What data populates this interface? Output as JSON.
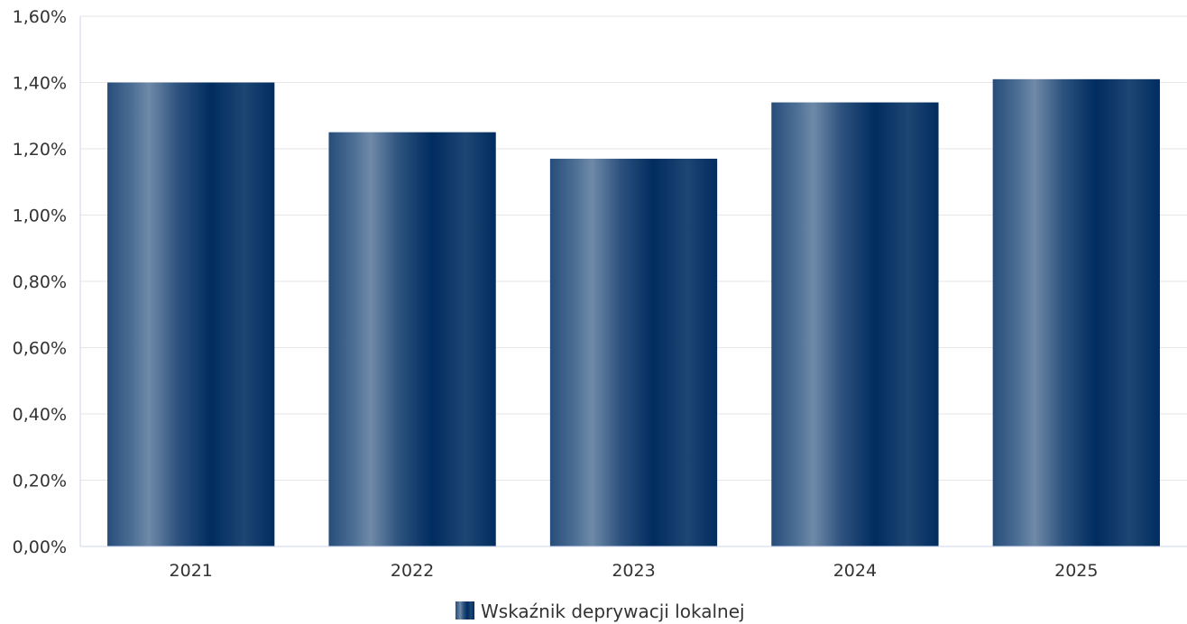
{
  "chart_data": {
    "type": "bar",
    "categories": [
      "2021",
      "2022",
      "2023",
      "2024",
      "2025"
    ],
    "series": [
      {
        "name": "Wskaźnik deprywacji lokalnej",
        "values": [
          1.4,
          1.25,
          1.17,
          1.34,
          1.41
        ]
      }
    ],
    "y_ticks": [
      "0,00%",
      "0,20%",
      "0,40%",
      "0,60%",
      "0,80%",
      "1,00%",
      "1,20%",
      "1,40%",
      "1,60%"
    ],
    "ylim": [
      0,
      1.6
    ],
    "unit": "%",
    "grid": true,
    "legend_position": "bottom-center",
    "colors": {
      "bar_dark": "#002c5f",
      "bar_light": "#6f8aa8",
      "grid": "#e6e6e6",
      "axis": "#ccd6eb"
    }
  }
}
